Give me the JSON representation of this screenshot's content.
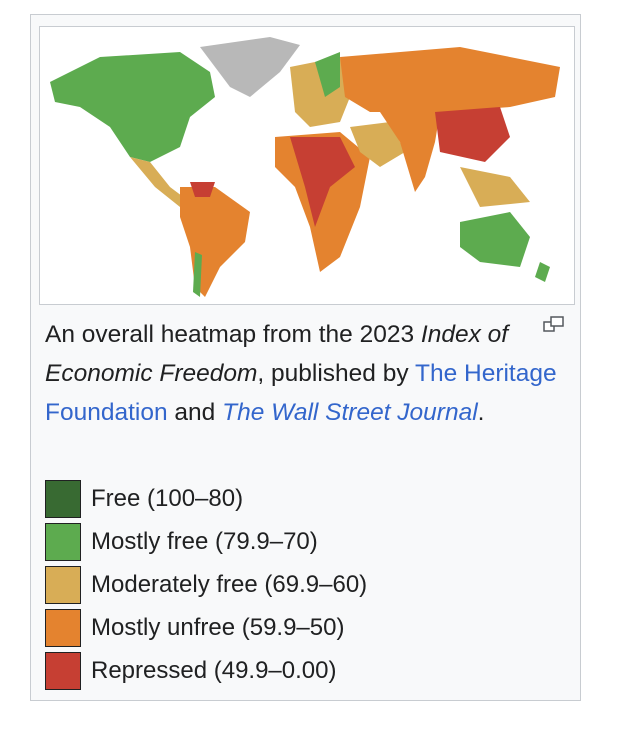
{
  "caption": {
    "text_1": "An overall heatmap from the 2023 ",
    "publication": "Index of Economic Freedom",
    "text_2": ", published by ",
    "publisher_link": "The Heritage Foundation",
    "text_3": " and ",
    "partner_link": "The Wall Street Journal",
    "text_4": "."
  },
  "legend": [
    {
      "label": "Free (100–80)",
      "color": "#386a32"
    },
    {
      "label": "Mostly free (79.9–70)",
      "color": "#5dab4f"
    },
    {
      "label": "Moderately free (69.9–60)",
      "color": "#d8ad56"
    },
    {
      "label": "Mostly unfree (59.9–50)",
      "color": "#e4832f"
    },
    {
      "label": "Repressed (49.9–0.00)",
      "color": "#c63f33"
    }
  ]
}
